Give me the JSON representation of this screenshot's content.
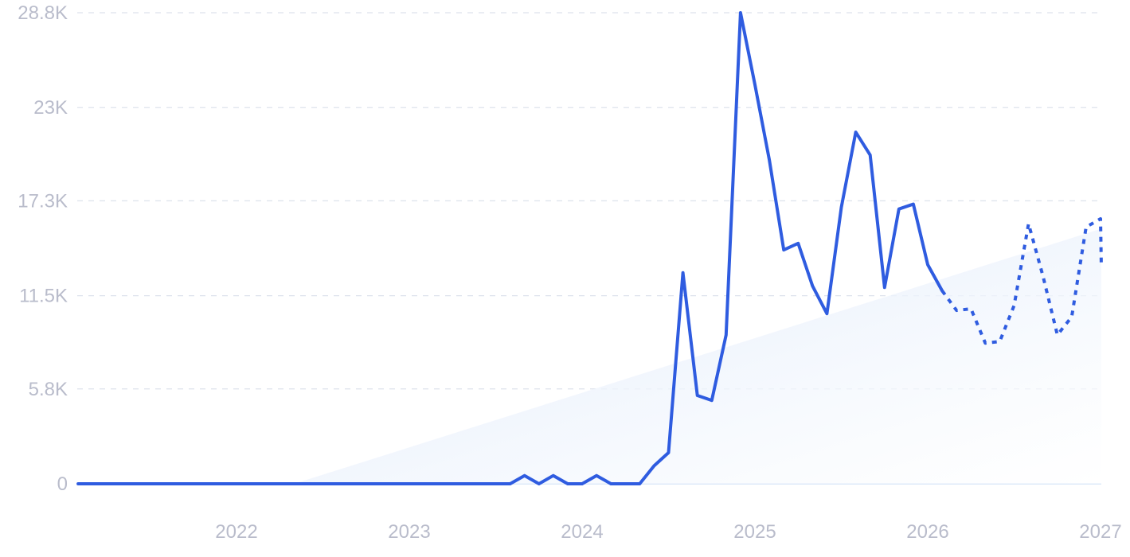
{
  "chart_data": {
    "type": "line",
    "title": "",
    "xlabel": "",
    "ylabel": "",
    "x_range": [
      "2021-02",
      "2027-01"
    ],
    "y_ticks": [
      "0",
      "5.8K",
      "11.5K",
      "17.3K",
      "23K",
      "28.8K"
    ],
    "y_tick_values": [
      0,
      5800,
      11500,
      17300,
      23000,
      28800
    ],
    "ylim": [
      0,
      28800
    ],
    "x_ticks": [
      "2022",
      "2023",
      "2024",
      "2025",
      "2026",
      "2027"
    ],
    "x_tick_dates": [
      "2022-01",
      "2023-01",
      "2024-01",
      "2025-01",
      "2026-01",
      "2027-01"
    ],
    "grid": true,
    "colors": {
      "line": "#2f5ce0",
      "trend_fill": "#e6effb",
      "grid": "#dde2ec",
      "tick_text": "#b9bccb"
    },
    "series": [
      {
        "style": "solid",
        "points": [
          [
            "2021-02",
            0
          ],
          [
            "2023-08",
            0
          ],
          [
            "2023-09",
            500
          ],
          [
            "2023-10",
            0
          ],
          [
            "2023-11",
            500
          ],
          [
            "2023-12",
            0
          ],
          [
            "2024-01",
            0
          ],
          [
            "2024-02",
            500
          ],
          [
            "2024-03",
            0
          ],
          [
            "2024-05",
            0
          ],
          [
            "2024-06",
            1100
          ],
          [
            "2024-07",
            1900
          ],
          [
            "2024-08",
            12900
          ],
          [
            "2024-09",
            5400
          ],
          [
            "2024-10",
            5100
          ],
          [
            "2024-11",
            9100
          ],
          [
            "2024-12",
            28800
          ],
          [
            "2025-01",
            24400
          ],
          [
            "2025-02",
            19800
          ],
          [
            "2025-03",
            14300
          ],
          [
            "2025-04",
            14700
          ],
          [
            "2025-05",
            12100
          ],
          [
            "2025-06",
            10400
          ],
          [
            "2025-07",
            16900
          ],
          [
            "2025-08",
            21500
          ],
          [
            "2025-09",
            20100
          ],
          [
            "2025-10",
            12000
          ],
          [
            "2025-11",
            16800
          ],
          [
            "2025-12",
            17100
          ],
          [
            "2026-01",
            13400
          ],
          [
            "2026-02",
            11800
          ]
        ]
      },
      {
        "style": "dashed",
        "points": [
          [
            "2026-02",
            11800
          ],
          [
            "2026-03",
            10600
          ],
          [
            "2026-04",
            10700
          ],
          [
            "2026-05",
            8600
          ],
          [
            "2026-06",
            8700
          ],
          [
            "2026-07",
            10900
          ],
          [
            "2026-08",
            15900
          ],
          [
            "2026-09",
            12700
          ],
          [
            "2026-10",
            9100
          ],
          [
            "2026-11",
            10200
          ],
          [
            "2026-12",
            15700
          ],
          [
            "2027-01",
            16200
          ],
          [
            "2027-02",
            13200
          ]
        ]
      }
    ],
    "trend_area": [
      [
        "2022-05",
        0
      ],
      [
        "2027-02",
        15600
      ]
    ]
  }
}
